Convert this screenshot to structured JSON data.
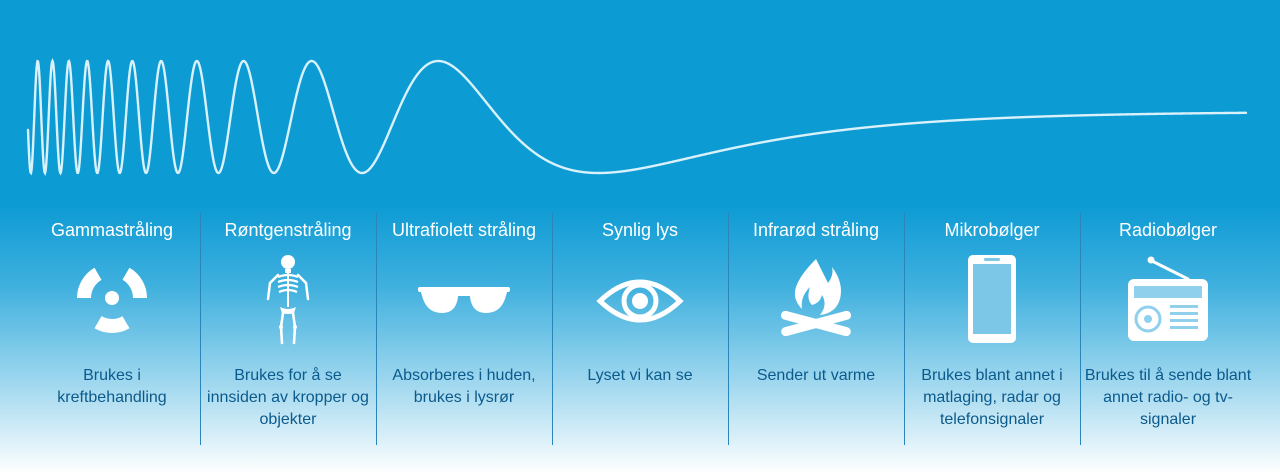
{
  "colors": {
    "background": "#0d9bd4",
    "wave": "#d9f1fb",
    "icon": "#ffffff",
    "title_text": "#ffffff",
    "description_text": "#0b5a8c",
    "divider": "#2a86b8"
  },
  "categories": [
    {
      "id": "gamma",
      "title": "Gammastråling",
      "icon": "radiation-icon",
      "description": "Brukes i kreftbehandling"
    },
    {
      "id": "xray",
      "title": "Røntgenstråling",
      "icon": "skeleton-icon",
      "description": "Brukes for å se innsiden av kropper og objekter"
    },
    {
      "id": "uv",
      "title": "Ultrafiolett stråling",
      "icon": "sunglasses-icon",
      "description": "Absorberes i huden, brukes i lysrør"
    },
    {
      "id": "visible",
      "title": "Synlig lys",
      "icon": "eye-icon",
      "description": "Lyset vi kan se"
    },
    {
      "id": "infrared",
      "title": "Infrarød stråling",
      "icon": "campfire-icon",
      "description": "Sender ut varme"
    },
    {
      "id": "microwave",
      "title": "Mikrobølger",
      "icon": "smartphone-icon",
      "description": "Brukes blant annet i matlaging, radar og telefonsignaler"
    },
    {
      "id": "radio",
      "title": "Radiobølger",
      "icon": "radio-icon",
      "description": "Brukes til å sende blant annet radio- og tv-signaler"
    }
  ]
}
